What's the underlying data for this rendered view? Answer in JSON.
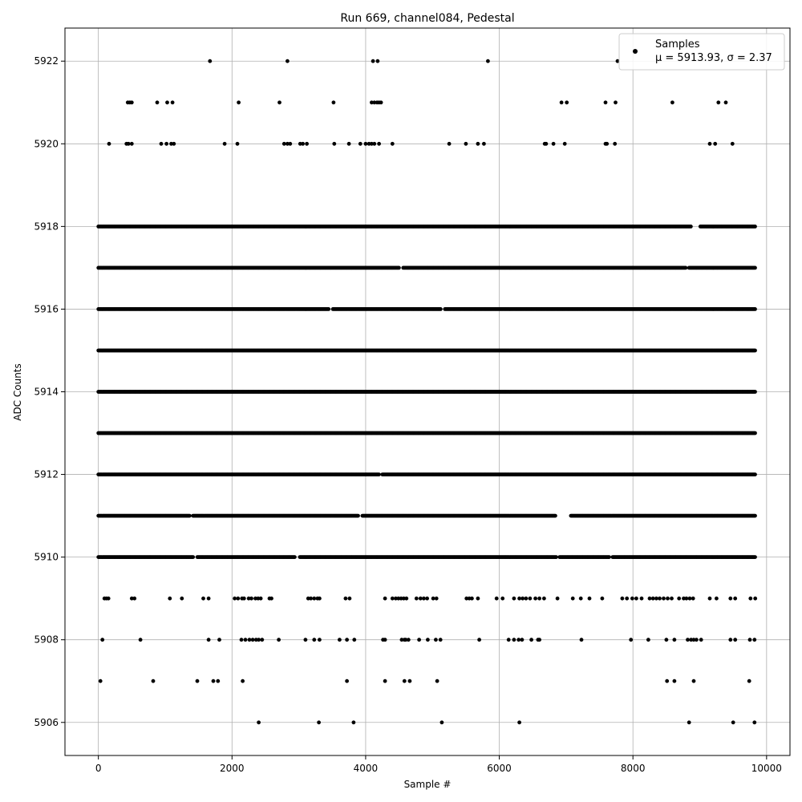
{
  "chart_data": {
    "type": "scatter",
    "title": "Run 669, channel084, Pedestal",
    "xlabel": "Sample #",
    "ylabel": "ADC Counts",
    "xlim": [
      -500,
      10350
    ],
    "ylim": [
      5905.2,
      5922.8
    ],
    "x_ticks": [
      0,
      2000,
      4000,
      6000,
      8000,
      10000
    ],
    "x_tick_labels": [
      "0",
      "2000",
      "4000",
      "6000",
      "8000",
      "10000"
    ],
    "y_ticks": [
      5906,
      5908,
      5910,
      5912,
      5914,
      5916,
      5918,
      5920,
      5922
    ],
    "y_tick_labels": [
      "5906",
      "5908",
      "5910",
      "5912",
      "5914",
      "5916",
      "5918",
      "5920",
      "5922"
    ],
    "grid": true,
    "legend": {
      "position": "top-right",
      "entries": [
        {
          "label": "Samples",
          "stats": "μ = 5913.93, σ = 2.37",
          "color": "#000000",
          "marker": "circle"
        }
      ]
    },
    "series": [
      {
        "name": "Samples",
        "color": "#000000",
        "levels": [
          {
            "y": 5906,
            "x": [
              2400,
              3300,
              3820,
              5140,
              6300,
              8840,
              9500,
              9820
            ]
          },
          {
            "y": 5907,
            "x": [
              30,
              820,
              1480,
              1720,
              1790,
              2160,
              3720,
              4290,
              4580,
              4660,
              5070,
              8510,
              8620,
              8910,
              9740
            ]
          },
          {
            "y": 5908,
            "x": [
              60,
              630,
              1650,
              1810,
              2140,
              2200,
              2260,
              2310,
              2360,
              2400,
              2450,
              2700,
              3100,
              3230,
              3310,
              3610,
              3720,
              3830,
              4260,
              4290,
              4540,
              4580,
              4600,
              4640,
              4800,
              4930,
              5050,
              5120,
              5700,
              6140,
              6220,
              6290,
              6340,
              6480,
              6580,
              6600,
              7230,
              7970,
              8230,
              8500,
              8620,
              8820,
              8870,
              8910,
              8950,
              9020,
              9460,
              9530,
              9750,
              9820
            ]
          },
          {
            "y": 5909,
            "x": [
              90,
              120,
              150,
              500,
              540,
              1070,
              1250,
              1570,
              1650,
              2040,
              2090,
              2150,
              2180,
              2250,
              2290,
              2350,
              2390,
              2430,
              2560,
              2590,
              3140,
              3180,
              3230,
              3280,
              3310,
              3700,
              3760,
              4290,
              4400,
              4450,
              4490,
              4530,
              4570,
              4610,
              4760,
              4820,
              4870,
              4920,
              5010,
              5060,
              5510,
              5550,
              5590,
              5680,
              5960,
              6050,
              6220,
              6300,
              6350,
              6400,
              6460,
              6540,
              6600,
              6670,
              6870,
              7100,
              7220,
              7350,
              7540,
              7840,
              7910,
              7990,
              8050,
              8130,
              8250,
              8300,
              8350,
              8400,
              8460,
              8520,
              8580,
              8690,
              8760,
              8800,
              8850,
              8900,
              9150,
              9250,
              9460,
              9530,
              9760,
              9830
            ]
          },
          {
            "y": 5920,
            "x": [
              160,
              420,
              450,
              500,
              940,
              1020,
              1090,
              1130,
              1890,
              2080,
              2780,
              2830,
              2870,
              3020,
              3060,
              3120,
              3530,
              3750,
              3920,
              4000,
              4050,
              4090,
              4130,
              4200,
              4400,
              5250,
              5500,
              5680,
              5770,
              6680,
              6700,
              6810,
              6980,
              7590,
              7610,
              7730,
              9150,
              9230,
              9490
            ]
          },
          {
            "y": 5921,
            "x": [
              440,
              470,
              500,
              880,
              1030,
              1110,
              2100,
              2710,
              3520,
              4090,
              4130,
              4170,
              4200,
              4230,
              6930,
              7010,
              7590,
              7740,
              8590,
              9280,
              9390
            ]
          },
          {
            "y": 5922,
            "x": [
              1670,
              2830,
              4110,
              4180,
              5830,
              7770
            ]
          }
        ],
        "dense_levels": [
          {
            "y": 5910,
            "x_range": [
              0,
              9830
            ],
            "gaps": [
              [
                1420,
                1470
              ],
              [
                2950,
                3010
              ],
              [
                6860,
                6890
              ],
              [
                7650,
                7690
              ]
            ]
          },
          {
            "y": 5911,
            "x_range": [
              0,
              9830
            ],
            "gaps": [
              [
                1370,
                1410
              ],
              [
                3900,
                3940
              ],
              [
                6850,
                7060
              ]
            ]
          },
          {
            "y": 5912,
            "x_range": [
              0,
              9830
            ],
            "gaps": [
              [
                4210,
                4240
              ]
            ]
          },
          {
            "y": 5913,
            "x_range": [
              0,
              9830
            ],
            "gaps": []
          },
          {
            "y": 5914,
            "x_range": [
              0,
              9830
            ],
            "gaps": []
          },
          {
            "y": 5915,
            "x_range": [
              0,
              9830
            ],
            "gaps": []
          },
          {
            "y": 5916,
            "x_range": [
              0,
              9830
            ],
            "gaps": [
              [
                3450,
                3500
              ],
              [
                5130,
                5180
              ]
            ]
          },
          {
            "y": 5917,
            "x_range": [
              0,
              9830
            ],
            "gaps": [
              [
                4500,
                4560
              ],
              [
                8790,
                8830
              ]
            ]
          },
          {
            "y": 5918,
            "x_range": [
              0,
              9830
            ],
            "gaps": [
              [
                8870,
                9000
              ]
            ]
          }
        ],
        "mean": 5913.93,
        "std": 2.37
      }
    ]
  }
}
